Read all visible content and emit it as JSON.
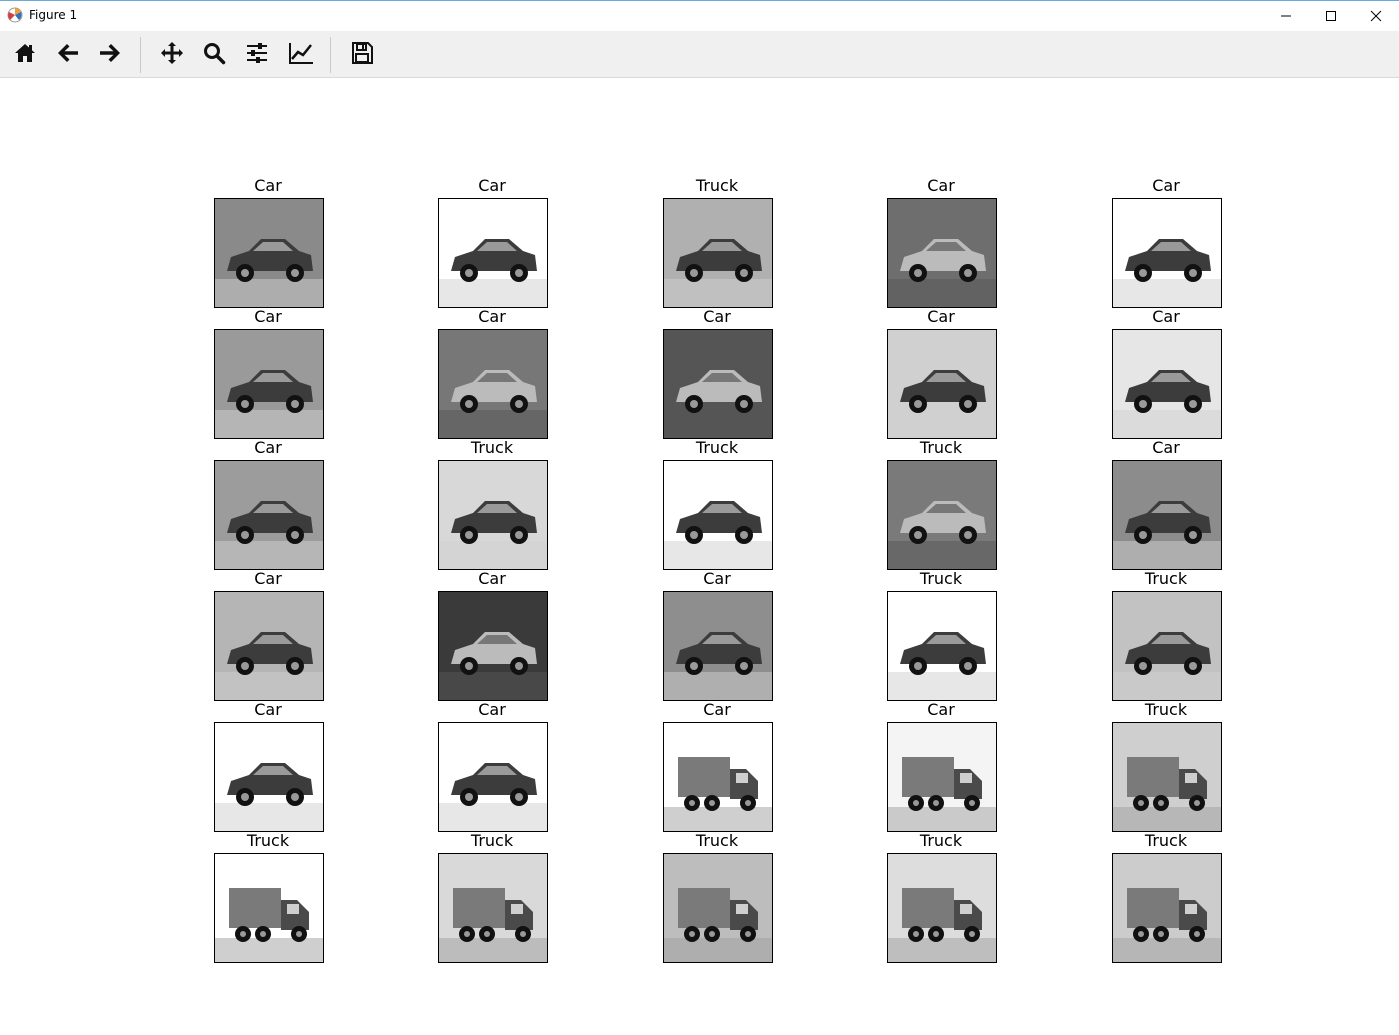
{
  "window": {
    "title": "Figure 1",
    "app_icon": "matplotlib-icon",
    "controls": [
      "minimize-icon",
      "maximize-icon",
      "close-icon"
    ]
  },
  "toolbar": {
    "buttons": [
      {
        "name": "home-button",
        "icon": "home-icon"
      },
      {
        "name": "back-button",
        "icon": "arrow-left-icon"
      },
      {
        "name": "forward-button",
        "icon": "arrow-right-icon"
      },
      {
        "name": "pan-button",
        "icon": "move-icon"
      },
      {
        "name": "zoom-button",
        "icon": "magnifier-icon"
      },
      {
        "name": "configure-subplots-button",
        "icon": "sliders-icon"
      },
      {
        "name": "edit-axis-button",
        "icon": "line-chart-icon"
      },
      {
        "name": "save-button",
        "icon": "floppy-disk-icon"
      }
    ]
  },
  "grid": {
    "rows": 6,
    "cols": 5,
    "labels": [
      [
        "Car",
        "Car",
        "Truck",
        "Car",
        "Car"
      ],
      [
        "Car",
        "Car",
        "Car",
        "Car",
        "Car"
      ],
      [
        "Car",
        "Truck",
        "Truck",
        "Truck",
        "Car"
      ],
      [
        "Car",
        "Car",
        "Car",
        "Truck",
        "Truck"
      ],
      [
        "Car",
        "Car",
        "Car",
        "Car",
        "Truck"
      ],
      [
        "Truck",
        "Truck",
        "Truck",
        "Truck",
        "Truck"
      ]
    ],
    "image_kinds": [
      [
        "car",
        "car",
        "car",
        "car",
        "car"
      ],
      [
        "car",
        "car",
        "car",
        "car",
        "car"
      ],
      [
        "car",
        "car",
        "car",
        "car",
        "car"
      ],
      [
        "car",
        "car",
        "car",
        "car",
        "car"
      ],
      [
        "car",
        "car",
        "truck",
        "truck",
        "truck"
      ],
      [
        "truck",
        "truck",
        "truck",
        "truck",
        "truck"
      ]
    ],
    "background_tones": [
      [
        "#8a8a8a",
        "#ffffff",
        "#b0b0b0",
        "#6e6e6e",
        "#ffffff"
      ],
      [
        "#9a9a9a",
        "#777777",
        "#555555",
        "#d0d0d0",
        "#e6e6e6"
      ],
      [
        "#9c9c9c",
        "#d8d8d8",
        "#ffffff",
        "#7a7a7a",
        "#8c8c8c"
      ],
      [
        "#b5b5b5",
        "#3a3a3a",
        "#8e8e8e",
        "#ffffff",
        "#c2c2c2"
      ],
      [
        "#ffffff",
        "#ffffff",
        "#ffffff",
        "#f4f4f4",
        "#cfcfcf"
      ],
      [
        "#ffffff",
        "#d9d9d9",
        "#bdbdbd",
        "#dddddd",
        "#cccccc"
      ]
    ]
  }
}
